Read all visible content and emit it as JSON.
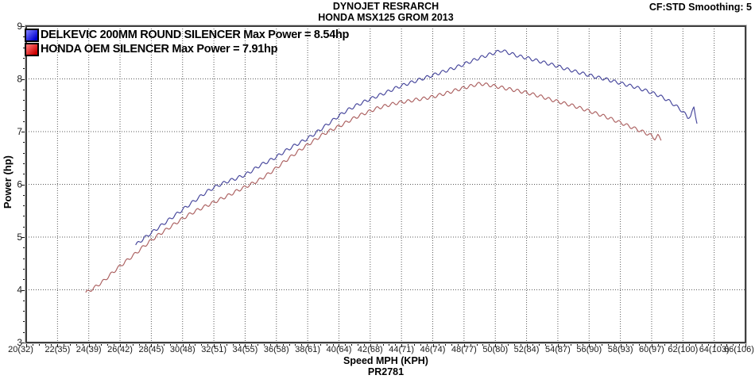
{
  "header": {
    "title_line1": "DYNOJET RESRARCH",
    "title_line2": "HONDA MSX125 GROM 2013",
    "smoothing": "CF:STD Smoothing: 5"
  },
  "footer": {
    "run_id": "PR2781"
  },
  "colors": {
    "background": "#ffffff",
    "grid": "#5a5a5a",
    "frame": "#3f3f3f",
    "frame_bevel": "#c8c8c8",
    "tick": "#111111",
    "tick_text": "#1a1a1a"
  },
  "chart_data": {
    "type": "line",
    "title": "HONDA MSX125 GROM 2013",
    "xlabel": "Speed MPH (KPH)",
    "ylabel": "Power (hp)",
    "xlim": [
      20,
      66
    ],
    "ylim": [
      3,
      9
    ],
    "grid": "dotted both axes",
    "legend_position": "top-left",
    "x_tick_values": [
      20,
      22,
      24,
      26,
      28,
      30,
      32,
      34,
      36,
      38,
      40,
      42,
      44,
      46,
      48,
      50,
      52,
      54,
      56,
      58,
      60,
      62,
      64,
      66
    ],
    "x_tick_labels": [
      "20(32)",
      "22(35)",
      "24(39)",
      "26(42)",
      "28(45)",
      "30(48)",
      "32(51)",
      "34(55)",
      "36(58)",
      "38(61)",
      "40(64)",
      "42(68)",
      "44(71)",
      "46(74)",
      "48(77)",
      "50(80)",
      "52(84)",
      "54(87)",
      "56(90)",
      "58(93)",
      "60(97)",
      "62(100)",
      "64(103)",
      "66(106)"
    ],
    "y_tick_values": [
      9,
      8,
      7,
      6,
      5,
      4,
      3
    ],
    "x_minor_step": 0.4,
    "y_minor_step": 0.2,
    "ripple": {
      "amplitude_hp": 0.03,
      "wavelength_mph": 0.5
    },
    "series": [
      {
        "name": "DELKEVIC 200MM ROUND SILENCER",
        "legend_label": "DELKEVIC 200MM ROUND SILENCER Max Power = 8.54hp",
        "max_power_hp": 8.54,
        "color": "#45459b",
        "swatch_gradient": [
          "#7373ff",
          "#0000cf"
        ],
        "points": [
          [
            27.0,
            4.85
          ],
          [
            27.5,
            4.97
          ],
          [
            28,
            5.08
          ],
          [
            28.5,
            5.19
          ],
          [
            29,
            5.3
          ],
          [
            29.5,
            5.41
          ],
          [
            30,
            5.52
          ],
          [
            30.5,
            5.63
          ],
          [
            31,
            5.74
          ],
          [
            31.5,
            5.85
          ],
          [
            32,
            5.94
          ],
          [
            32.5,
            6.01
          ],
          [
            33,
            6.07
          ],
          [
            33.5,
            6.12
          ],
          [
            34,
            6.18
          ],
          [
            34.5,
            6.27
          ],
          [
            35,
            6.37
          ],
          [
            35.5,
            6.44
          ],
          [
            36,
            6.52
          ],
          [
            36.5,
            6.62
          ],
          [
            37,
            6.71
          ],
          [
            37.5,
            6.79
          ],
          [
            38,
            6.87
          ],
          [
            38.5,
            6.97
          ],
          [
            39,
            7.08
          ],
          [
            39.5,
            7.19
          ],
          [
            40,
            7.3
          ],
          [
            40.5,
            7.4
          ],
          [
            41,
            7.48
          ],
          [
            41.5,
            7.55
          ],
          [
            42,
            7.62
          ],
          [
            42.5,
            7.68
          ],
          [
            43,
            7.74
          ],
          [
            43.5,
            7.81
          ],
          [
            44,
            7.87
          ],
          [
            44.5,
            7.92
          ],
          [
            45,
            7.97
          ],
          [
            45.5,
            8.02
          ],
          [
            46,
            8.07
          ],
          [
            46.5,
            8.12
          ],
          [
            47,
            8.17
          ],
          [
            47.5,
            8.22
          ],
          [
            48,
            8.28
          ],
          [
            48.5,
            8.34
          ],
          [
            49,
            8.4
          ],
          [
            49.5,
            8.45
          ],
          [
            50,
            8.5
          ],
          [
            50.4,
            8.54
          ],
          [
            51,
            8.48
          ],
          [
            51.5,
            8.43
          ],
          [
            52,
            8.4
          ],
          [
            52.5,
            8.36
          ],
          [
            53,
            8.32
          ],
          [
            53.5,
            8.28
          ],
          [
            54,
            8.24
          ],
          [
            54.5,
            8.19
          ],
          [
            55,
            8.15
          ],
          [
            55.5,
            8.11
          ],
          [
            56,
            8.07
          ],
          [
            56.5,
            8.03
          ],
          [
            57,
            8.0
          ],
          [
            57.5,
            7.96
          ],
          [
            58,
            7.92
          ],
          [
            58.5,
            7.88
          ],
          [
            59,
            7.84
          ],
          [
            59.5,
            7.79
          ],
          [
            60,
            7.74
          ],
          [
            60.5,
            7.68
          ],
          [
            61,
            7.6
          ],
          [
            61.5,
            7.5
          ],
          [
            62,
            7.38
          ],
          [
            62.3,
            7.27
          ],
          [
            62.5,
            7.3
          ],
          [
            62.7,
            7.45
          ],
          [
            62.9,
            7.18
          ]
        ]
      },
      {
        "name": "HONDA OEM SILENCER",
        "legend_label": "HONDA OEM SILENCER Max Power = 7.91hp",
        "max_power_hp": 7.91,
        "color": "#ab5f5f",
        "swatch_gradient": [
          "#ff7373",
          "#cf0000"
        ],
        "points": [
          [
            23.8,
            3.95
          ],
          [
            24,
            3.97
          ],
          [
            24.5,
            4.07
          ],
          [
            25,
            4.18
          ],
          [
            25.5,
            4.32
          ],
          [
            26,
            4.45
          ],
          [
            26.5,
            4.57
          ],
          [
            27,
            4.69
          ],
          [
            27.5,
            4.82
          ],
          [
            28,
            4.94
          ],
          [
            28.5,
            5.05
          ],
          [
            29,
            5.15
          ],
          [
            29.5,
            5.25
          ],
          [
            30,
            5.35
          ],
          [
            30.5,
            5.44
          ],
          [
            31,
            5.52
          ],
          [
            31.5,
            5.59
          ],
          [
            32,
            5.66
          ],
          [
            32.5,
            5.73
          ],
          [
            33,
            5.8
          ],
          [
            33.5,
            5.88
          ],
          [
            34,
            5.95
          ],
          [
            34.5,
            6.02
          ],
          [
            35,
            6.1
          ],
          [
            35.5,
            6.2
          ],
          [
            36,
            6.31
          ],
          [
            36.5,
            6.43
          ],
          [
            37,
            6.54
          ],
          [
            37.5,
            6.65
          ],
          [
            38,
            6.75
          ],
          [
            38.5,
            6.85
          ],
          [
            39,
            6.95
          ],
          [
            39.5,
            7.03
          ],
          [
            40,
            7.1
          ],
          [
            40.5,
            7.18
          ],
          [
            41,
            7.26
          ],
          [
            41.5,
            7.33
          ],
          [
            42,
            7.39
          ],
          [
            42.5,
            7.45
          ],
          [
            43,
            7.49
          ],
          [
            43.5,
            7.53
          ],
          [
            44,
            7.56
          ],
          [
            44.5,
            7.58
          ],
          [
            45,
            7.61
          ],
          [
            45.5,
            7.63
          ],
          [
            46,
            7.66
          ],
          [
            46.5,
            7.7
          ],
          [
            47,
            7.74
          ],
          [
            47.5,
            7.79
          ],
          [
            48,
            7.83
          ],
          [
            48.5,
            7.87
          ],
          [
            49,
            7.91
          ],
          [
            49.5,
            7.89
          ],
          [
            50,
            7.86
          ],
          [
            50.5,
            7.83
          ],
          [
            51,
            7.8
          ],
          [
            51.5,
            7.77
          ],
          [
            52,
            7.74
          ],
          [
            52.5,
            7.7
          ],
          [
            53,
            7.66
          ],
          [
            53.5,
            7.61
          ],
          [
            54,
            7.57
          ],
          [
            54.5,
            7.53
          ],
          [
            55,
            7.49
          ],
          [
            55.5,
            7.44
          ],
          [
            56,
            7.39
          ],
          [
            56.5,
            7.34
          ],
          [
            57,
            7.29
          ],
          [
            57.5,
            7.23
          ],
          [
            58,
            7.17
          ],
          [
            58.5,
            7.11
          ],
          [
            59,
            7.05
          ],
          [
            59.5,
            6.99
          ],
          [
            60,
            6.92
          ],
          [
            60.2,
            6.87
          ],
          [
            60.4,
            6.92
          ],
          [
            60.6,
            6.85
          ]
        ]
      }
    ]
  }
}
